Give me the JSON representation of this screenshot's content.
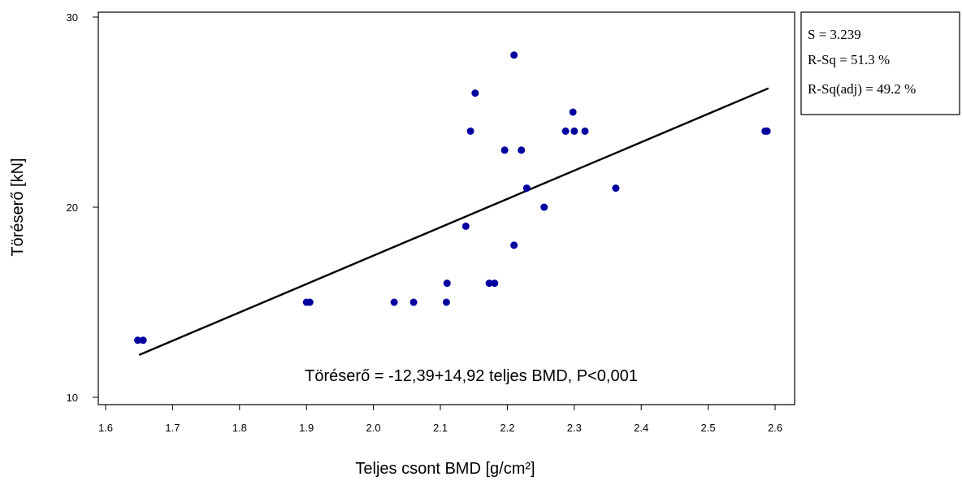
{
  "chart_data": {
    "type": "scatter",
    "xlabel": "Teljes csont BMD [g/cm²]",
    "ylabel": "Töréserő [kN]",
    "xlim": [
      1.6,
      2.6
    ],
    "ylim": [
      10,
      30
    ],
    "x_ticks": [
      "1.6",
      "1.7",
      "1.8",
      "1.9",
      "2.0",
      "2.1",
      "2.2",
      "2.3",
      "2.4",
      "2.5",
      "2.6"
    ],
    "y_ticks": [
      "10",
      "20",
      "30"
    ],
    "points": [
      [
        1.648,
        13
      ],
      [
        1.656,
        13
      ],
      [
        1.9,
        15
      ],
      [
        1.905,
        15
      ],
      [
        2.031,
        15
      ],
      [
        2.06,
        15
      ],
      [
        2.109,
        15
      ],
      [
        2.11,
        16
      ],
      [
        2.138,
        19
      ],
      [
        2.145,
        24
      ],
      [
        2.152,
        26
      ],
      [
        2.173,
        16
      ],
      [
        2.181,
        16
      ],
      [
        2.196,
        23
      ],
      [
        2.21,
        28
      ],
      [
        2.21,
        18
      ],
      [
        2.221,
        23
      ],
      [
        2.229,
        21
      ],
      [
        2.255,
        20
      ],
      [
        2.287,
        24
      ],
      [
        2.298,
        25
      ],
      [
        2.3,
        24
      ],
      [
        2.316,
        24
      ],
      [
        2.362,
        21
      ],
      [
        2.585,
        24
      ],
      [
        2.588,
        24
      ]
    ],
    "point_color": "#00009f",
    "fit_line": {
      "intercept": -12.39,
      "slope": 14.92,
      "x_range": [
        1.65,
        2.59
      ]
    },
    "annotation": "Töréserő = -12,39+14,92 teljes BMD, P<0,001",
    "stats": [
      "S = 3.239",
      "R-Sq = 51.3 %",
      "R-Sq(adj) = 49.2 %"
    ],
    "grid": false,
    "legend": "none"
  }
}
